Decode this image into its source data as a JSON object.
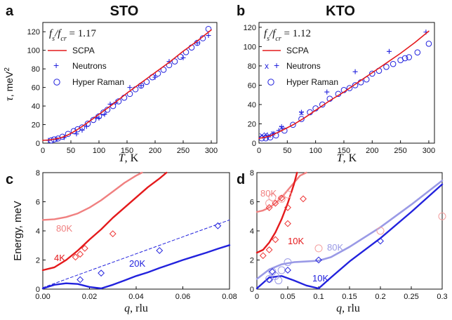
{
  "colors": {
    "red": "#e41a1c",
    "blue": "#2222dd",
    "salmon": "#f08080",
    "lightblue": "#9a9ae6",
    "diamond_red": "#ee3333",
    "circle_salmon": "#f4a0a0"
  },
  "chart_data": [
    {
      "id": "a",
      "type": "scatter",
      "letter": "a",
      "title": "STO",
      "xlabel_var": "T",
      "xlabel_unit": ", K",
      "ylabel_var": "τ",
      "ylabel_unit": ", meV",
      "ylabel_sup": "2",
      "annotation": "f_s/f_cr = 1.17",
      "xlim": [
        0,
        310
      ],
      "ylim": [
        0,
        130
      ],
      "xticks": [
        0,
        50,
        100,
        150,
        200,
        250,
        300
      ],
      "yticks": [
        0,
        20,
        40,
        60,
        80,
        100,
        120
      ],
      "legend": [
        "SCPA",
        "Neutrons",
        "Hyper Raman"
      ],
      "scpa": {
        "x": [
          0,
          10,
          20,
          30,
          40,
          50,
          60,
          75,
          100,
          125,
          150,
          175,
          200,
          225,
          250,
          275,
          300
        ],
        "y": [
          3,
          3.4,
          4.2,
          5.5,
          7.5,
          10.5,
          14,
          20,
          31,
          42,
          54,
          65,
          76,
          87,
          99,
          110,
          122
        ]
      },
      "neutrons": {
        "x": [
          10,
          25,
          38,
          60,
          70,
          78,
          95,
          100,
          110,
          120,
          130,
          155,
          175,
          200,
          225,
          250,
          275,
          295
        ],
        "y": [
          3,
          4,
          6,
          10,
          14,
          18,
          28,
          27,
          31,
          42,
          44,
          60,
          62,
          71,
          88,
          92,
          108,
          116
        ]
      },
      "hyper_raman": {
        "x": [
          15,
          20,
          27,
          35,
          45,
          55,
          62,
          70,
          80,
          90,
          100,
          108,
          115,
          125,
          135,
          145,
          155,
          165,
          175,
          185,
          195,
          205,
          215,
          225,
          235,
          245,
          255,
          265,
          275,
          285,
          295
        ],
        "y": [
          3,
          4,
          5,
          7,
          10,
          13,
          15,
          17,
          21,
          25,
          29,
          33,
          36,
          40,
          45,
          49,
          53,
          58,
          62,
          66,
          71,
          75,
          79,
          84,
          88,
          93,
          98,
          103,
          108,
          113,
          123
        ]
      }
    },
    {
      "id": "b",
      "type": "scatter",
      "letter": "b",
      "title": "KTO",
      "xlabel_var": "T",
      "xlabel_unit": ", K",
      "annotation": "f_s/f_cr = 1.12",
      "xlim": [
        0,
        310
      ],
      "ylim": [
        0,
        125
      ],
      "xticks": [
        0,
        50,
        100,
        150,
        200,
        250,
        300
      ],
      "yticks": [
        0,
        20,
        40,
        60,
        80,
        100,
        120
      ],
      "legend": [
        "SCPA",
        "Neutrons",
        "Hyper Raman"
      ],
      "scpa": {
        "x": [
          0,
          10,
          20,
          40,
          60,
          80,
          100,
          125,
          150,
          175,
          200,
          225,
          250,
          275,
          300
        ],
        "y": [
          5,
          6,
          7.5,
          13,
          19,
          26,
          34,
          44,
          53,
          63,
          73,
          83,
          93,
          104,
          116
        ]
      },
      "neutrons_x": {
        "x": [
          5,
          8,
          12,
          18,
          25,
          40,
          75
        ],
        "y": [
          8,
          7,
          9,
          8,
          10,
          16,
          31
        ]
      },
      "neutrons_plus": {
        "x": [
          15,
          25,
          35,
          40,
          75,
          120,
          170,
          230,
          295
        ],
        "y": [
          6,
          10,
          13,
          17,
          32,
          53,
          74,
          95,
          115
        ]
      },
      "hyper_raman": {
        "x": [
          5,
          12,
          20,
          30,
          45,
          60,
          75,
          90,
          100,
          112,
          125,
          140,
          150,
          160,
          170,
          180,
          190,
          200,
          212,
          225,
          237,
          250,
          258,
          265,
          280,
          300
        ],
        "y": [
          5,
          5,
          6,
          8,
          13,
          19,
          25,
          32,
          36,
          40,
          46,
          51,
          55,
          57,
          60,
          63,
          66,
          72,
          75,
          79,
          82,
          86,
          88,
          89,
          94,
          103
        ]
      }
    },
    {
      "id": "c",
      "type": "line",
      "letter": "c",
      "xlabel_var": "q",
      "xlabel_unit": ", rlu",
      "ylabel": "Energy, meV",
      "xlim": [
        0,
        0.08
      ],
      "ylim": [
        0,
        8
      ],
      "xticks": [
        0,
        0.02,
        0.04,
        0.06,
        0.08
      ],
      "xtick_labels": [
        "0.00",
        "0.02",
        "0.04",
        "0.06",
        "0.08"
      ],
      "yticks": [
        0,
        2,
        4,
        6,
        8
      ],
      "curve_labels": [
        "80K",
        "4K",
        "20K"
      ],
      "series_80K": {
        "x": [
          0,
          0.005,
          0.01,
          0.015,
          0.02,
          0.025,
          0.03,
          0.035,
          0.04,
          0.0425
        ],
        "y": [
          4.75,
          4.8,
          4.95,
          5.2,
          5.6,
          6.1,
          6.7,
          7.3,
          7.8,
          8.0
        ]
      },
      "series_4K": {
        "x": [
          0,
          0.005,
          0.01,
          0.015,
          0.02,
          0.025,
          0.03,
          0.035,
          0.04,
          0.045,
          0.05,
          0.053
        ],
        "y": [
          1.3,
          1.5,
          2.0,
          2.65,
          3.4,
          4.1,
          4.9,
          5.6,
          6.3,
          7.0,
          7.6,
          8.0
        ]
      },
      "series_20K": {
        "x": [
          0,
          0.005,
          0.01,
          0.015,
          0.02,
          0.025,
          0.03,
          0.035,
          0.04,
          0.045,
          0.05,
          0.055,
          0.06,
          0.065,
          0.07,
          0.075,
          0.08
        ],
        "y": [
          0.05,
          0.3,
          0.4,
          0.35,
          0.15,
          0.05,
          0.3,
          0.6,
          0.9,
          1.15,
          1.45,
          1.72,
          2.0,
          2.25,
          2.5,
          2.77,
          3.02
        ]
      },
      "dashed_20K": {
        "x": [
          0,
          0.08
        ],
        "y": [
          0.1,
          4.75
        ]
      },
      "diamonds_4K": {
        "x": [
          0.014,
          0.016,
          0.018,
          0.03
        ],
        "y": [
          2.2,
          2.4,
          2.8,
          3.8
        ]
      },
      "diamonds_20K": {
        "x": [
          0.016,
          0.025,
          0.05,
          0.075
        ],
        "y": [
          0.65,
          1.1,
          2.65,
          4.35
        ]
      }
    },
    {
      "id": "d",
      "type": "line",
      "letter": "d",
      "xlabel_var": "q",
      "xlabel_unit": ", rlu",
      "xlim": [
        0,
        0.3
      ],
      "ylim": [
        0,
        8
      ],
      "xticks": [
        0,
        0.05,
        0.1,
        0.15,
        0.2,
        0.25,
        0.3
      ],
      "xtick_labels": [
        "0",
        "0.05",
        "0.1",
        "0.15",
        "0.2",
        "0.25",
        "0.3"
      ],
      "yticks": [
        0,
        2,
        4,
        6,
        8
      ],
      "curve_labels": [
        "80K",
        "10K",
        "80K",
        "10K"
      ],
      "series_80K_lower": {
        "x": [
          0,
          0.02,
          0.04,
          0.06,
          0.08,
          0.1,
          0.12,
          0.15,
          0.2,
          0.25,
          0.3
        ],
        "y": [
          0.7,
          1.35,
          1.7,
          1.85,
          1.9,
          1.95,
          2.2,
          2.9,
          4.25,
          5.8,
          7.45
        ]
      },
      "series_10K_lower": {
        "x": [
          0,
          0.02,
          0.04,
          0.06,
          0.08,
          0.1,
          0.12,
          0.15,
          0.2,
          0.25,
          0.3
        ],
        "y": [
          0.05,
          0.8,
          0.9,
          0.6,
          0.25,
          0.05,
          0.8,
          1.9,
          3.5,
          5.3,
          7.2
        ]
      },
      "series_80K_upper": {
        "x": [
          0,
          0.01,
          0.02,
          0.03,
          0.04,
          0.05,
          0.06,
          0.07,
          0.08
        ],
        "y": [
          5.3,
          5.4,
          5.6,
          5.9,
          6.3,
          6.8,
          7.3,
          7.8,
          8.0
        ]
      },
      "series_10K_upper": {
        "x": [
          0,
          0.01,
          0.02,
          0.03,
          0.04,
          0.05,
          0.06,
          0.065
        ],
        "y": [
          2.5,
          2.7,
          3.2,
          3.9,
          4.8,
          5.9,
          7.2,
          8.0
        ]
      },
      "diamonds_80K": {
        "x": [
          0.02,
          0.03,
          0.04,
          0.05,
          0.075
        ],
        "y": [
          5.6,
          5.9,
          6.25,
          5.6,
          6.2
        ]
      },
      "diamonds_10K": {
        "x": [
          0.01,
          0.02,
          0.03,
          0.05
        ],
        "y": [
          2.3,
          2.7,
          3.4,
          4.5
        ]
      },
      "diamonds_lower": {
        "x": [
          0.02,
          0.025,
          0.05,
          0.1,
          0.2
        ],
        "y": [
          0.65,
          1.2,
          1.3,
          2.0,
          3.3
        ]
      },
      "circles_80K": {
        "x": [
          0.02,
          0.025,
          0.04,
          0.05,
          0.1,
          0.2,
          0.3
        ],
        "y": [
          5.9,
          6.3,
          6.2,
          6.5,
          2.8,
          4.0,
          5.0
        ]
      },
      "circles_lower": {
        "x": [
          0.02,
          0.025,
          0.03,
          0.035,
          0.04,
          0.05
        ],
        "y": [
          0.7,
          1.2,
          0.9,
          0.6,
          1.3,
          1.85
        ]
      }
    }
  ]
}
